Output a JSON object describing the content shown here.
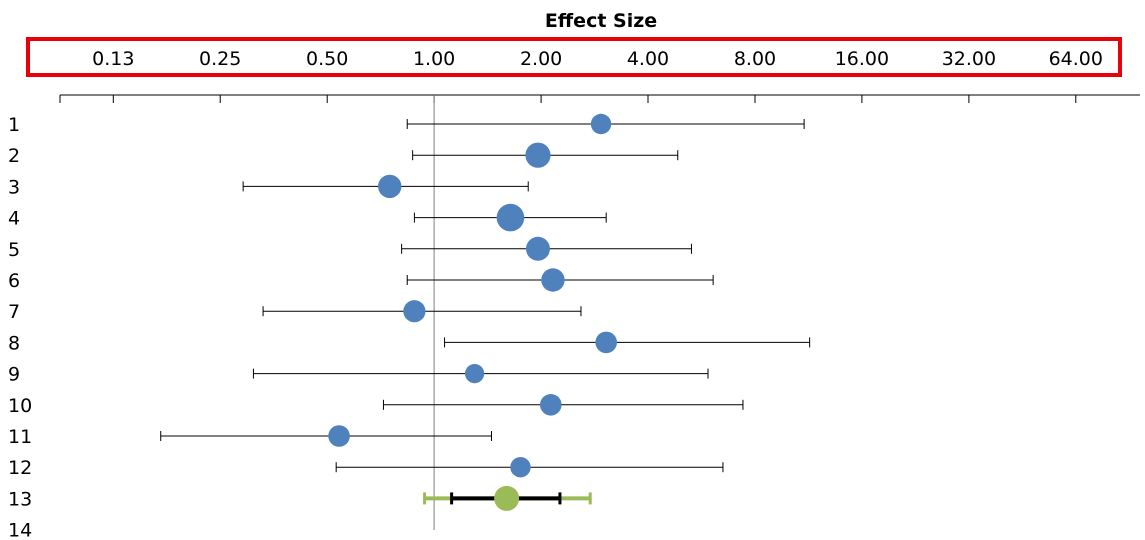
{
  "chart_data": {
    "type": "scatter",
    "subtype": "forest-plot",
    "title": "Effect Size",
    "x_scale": "log2",
    "xlim": [
      0.0885,
      97
    ],
    "x_tick_labels": [
      "0.13",
      "0.25",
      "0.50",
      "1.00",
      "2.00",
      "4.00",
      "8.00",
      "16.00",
      "32.00",
      "64.00"
    ],
    "x_tick_values": [
      0.125,
      0.25,
      0.5,
      1,
      2,
      4,
      8,
      16,
      32,
      64
    ],
    "reference_line": 1,
    "tick_label_box_color": "#e8000b",
    "point_color": "#4f81bd",
    "summary_color": "#9bbb59",
    "summary_inner_ci_color": "#000000",
    "rows": [
      "1",
      "2",
      "3",
      "4",
      "5",
      "6",
      "7",
      "8",
      "9",
      "10",
      "11",
      "12",
      "13",
      "14"
    ],
    "studies": [
      {
        "row": "1",
        "estimate": 2.95,
        "ci_low": 0.84,
        "ci_high": 11.0,
        "weight": 0.7
      },
      {
        "row": "2",
        "estimate": 1.96,
        "ci_low": 0.87,
        "ci_high": 4.85,
        "weight": 1.1
      },
      {
        "row": "3",
        "estimate": 0.75,
        "ci_low": 0.29,
        "ci_high": 1.84,
        "weight": 0.95
      },
      {
        "row": "4",
        "estimate": 1.64,
        "ci_low": 0.88,
        "ci_high": 3.05,
        "weight": 1.3
      },
      {
        "row": "5",
        "estimate": 1.96,
        "ci_low": 0.81,
        "ci_high": 5.3,
        "weight": 1.0
      },
      {
        "row": "6",
        "estimate": 2.16,
        "ci_low": 0.84,
        "ci_high": 6.1,
        "weight": 0.95
      },
      {
        "row": "7",
        "estimate": 0.88,
        "ci_low": 0.33,
        "ci_high": 2.59,
        "weight": 0.85
      },
      {
        "row": "8",
        "estimate": 3.05,
        "ci_low": 1.07,
        "ci_high": 11.4,
        "weight": 0.8
      },
      {
        "row": "9",
        "estimate": 1.3,
        "ci_low": 0.31,
        "ci_high": 5.9,
        "weight": 0.6
      },
      {
        "row": "10",
        "estimate": 2.13,
        "ci_low": 0.72,
        "ci_high": 7.4,
        "weight": 0.8
      },
      {
        "row": "11",
        "estimate": 0.54,
        "ci_low": 0.17,
        "ci_high": 1.45,
        "weight": 0.8
      },
      {
        "row": "12",
        "estimate": 1.75,
        "ci_low": 0.53,
        "ci_high": 6.5,
        "weight": 0.7
      }
    ],
    "summary": {
      "row": "13",
      "estimate": 1.6,
      "ci_low": 1.12,
      "ci_high": 2.26,
      "pred_low": 0.94,
      "pred_high": 2.75
    },
    "grid": false,
    "legend": "none"
  }
}
